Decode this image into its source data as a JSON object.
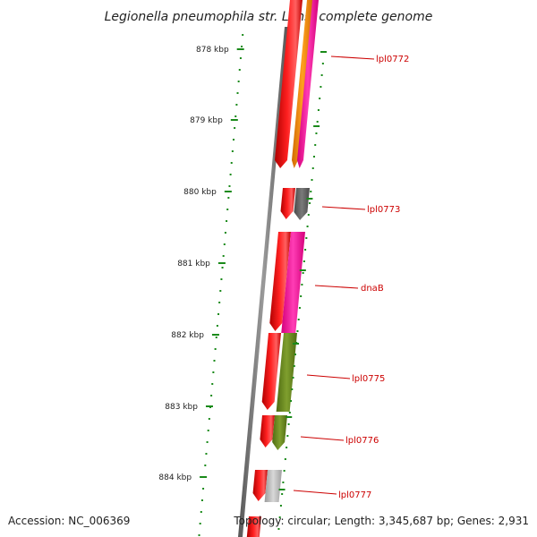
{
  "title": "Legionella pneumophila str. Lens, complete genome",
  "footer": {
    "accession": "Accession: NC_006369",
    "topology": "Topology: circular; Length: 3,345,687 bp; Genes: 2,931"
  },
  "scale": {
    "ticks": [
      {
        "label": "878 kbp"
      },
      {
        "label": "879 kbp"
      },
      {
        "label": "880 kbp"
      },
      {
        "label": "881 kbp"
      },
      {
        "label": "882 kbp"
      },
      {
        "label": "883 kbp"
      },
      {
        "label": "884 kbp"
      }
    ]
  },
  "genes": [
    {
      "name": "lpl0772"
    },
    {
      "name": "lpl0773"
    },
    {
      "name": "dnaB"
    },
    {
      "name": "lpl0775"
    },
    {
      "name": "lpl0776"
    },
    {
      "name": "lpl0777"
    }
  ],
  "colors": {
    "gene_arrow": "#ff0000",
    "backbone": "#777777",
    "tick": "#1a8a1a",
    "label": "#cc0000",
    "feature_magenta": "#ff2aa8",
    "feature_orange": "#ff8c00",
    "feature_gray": "#606060",
    "feature_green": "#6b8e23",
    "feature_lightgray": "#b8b8b8"
  }
}
